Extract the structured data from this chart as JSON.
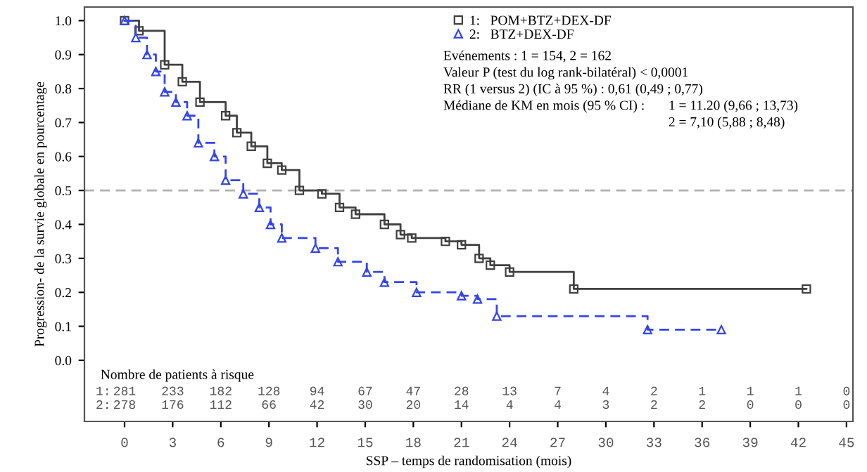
{
  "chart_data": {
    "type": "step",
    "xlabel": "SSP – temps de randomisation (mois)",
    "ylabel": "Progression- de la survie globale en pourcentage",
    "xlim": [
      -2.5,
      45.4
    ],
    "ylim": [
      -0.18,
      1.04
    ],
    "xticks": [
      0,
      3,
      6,
      9,
      12,
      15,
      18,
      21,
      24,
      27,
      30,
      33,
      36,
      39,
      42,
      45
    ],
    "yticks": [
      {
        "value": 0,
        "label": "0.0"
      },
      0.1,
      0.2,
      0.3,
      0.4,
      0.5,
      0.6,
      0.7,
      0.8,
      0.9,
      {
        "value": 1,
        "label": "1.0"
      }
    ],
    "grid": false,
    "legend": "top right",
    "ref_lines": [
      {
        "axis": "y",
        "value": 0.5,
        "color": "#b0b0b0",
        "line_style": "dashed"
      }
    ],
    "series": [
      {
        "name": "1:   POM+BTZ+DEX-DF",
        "color": "#404040",
        "marker": "square",
        "line_style": "solid",
        "x": [
          0,
          0.9,
          2.5,
          3.6,
          4.7,
          6.3,
          7.0,
          7.9,
          8.9,
          9.8,
          10.9,
          12.3,
          13.4,
          14.4,
          16.2,
          17.2,
          17.9,
          20,
          21,
          22.1,
          22.8,
          24,
          28,
          42.5
        ],
        "values": [
          1.0,
          0.97,
          0.87,
          0.82,
          0.76,
          0.72,
          0.67,
          0.63,
          0.58,
          0.56,
          0.5,
          0.49,
          0.45,
          0.43,
          0.4,
          0.37,
          0.36,
          0.35,
          0.34,
          0.3,
          0.28,
          0.26,
          0.21,
          0.21
        ]
      },
      {
        "name": "2:   BTZ+DEX-DF",
        "color": "#3344ee",
        "marker": "triangle",
        "line_style": "dashed",
        "x": [
          0,
          0.7,
          1.4,
          1.95,
          2.5,
          3.2,
          3.9,
          4.6,
          5.6,
          6.3,
          7.4,
          8.4,
          9.1,
          9.8,
          11.9,
          13.3,
          15.1,
          16.2,
          18.2,
          21,
          22,
          23.2,
          32.6,
          37.2
        ],
        "values": [
          1.0,
          0.95,
          0.9,
          0.85,
          0.79,
          0.76,
          0.72,
          0.64,
          0.6,
          0.53,
          0.49,
          0.45,
          0.4,
          0.36,
          0.33,
          0.29,
          0.26,
          0.23,
          0.2,
          0.19,
          0.18,
          0.13,
          0.09,
          0.09
        ]
      }
    ],
    "annotations": [
      "Evénements : 1 = 154, 2 = 162",
      "Valeur P (test du log rank-bilatéral) < 0,0001",
      "RR (1 versus 2) (IC à 95 %) : 0,61 (0,49 ; 0,77)",
      "Médiane de KM en mois (95 % CI) :",
      "1 = 11.20 (9,66 ; 13,73)",
      "2 = 7,10 (5,88 ; 8,48)",
      "Nombre de patients à risque",
      "1:",
      "281",
      "233",
      "182",
      "128",
      "94",
      "67",
      "47",
      "28",
      "13",
      "7",
      "4",
      "2",
      "1",
      "1",
      "1",
      "0",
      "2:",
      "278",
      "176",
      "112",
      "66",
      "42",
      "30",
      "20",
      "14",
      "4",
      "4",
      "3",
      "2",
      "2",
      "0",
      "0",
      "0"
    ]
  }
}
